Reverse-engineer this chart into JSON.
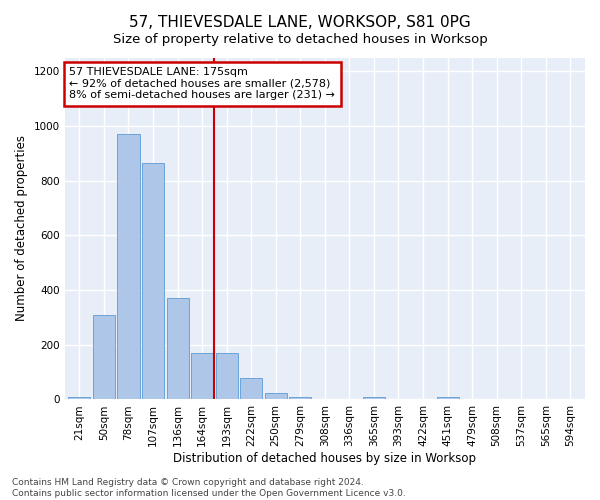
{
  "title": "57, THIEVESDALE LANE, WORKSOP, S81 0PG",
  "subtitle": "Size of property relative to detached houses in Worksop",
  "xlabel": "Distribution of detached houses by size in Worksop",
  "ylabel": "Number of detached properties",
  "bar_labels": [
    "21sqm",
    "50sqm",
    "78sqm",
    "107sqm",
    "136sqm",
    "164sqm",
    "193sqm",
    "222sqm",
    "250sqm",
    "279sqm",
    "308sqm",
    "336sqm",
    "365sqm",
    "393sqm",
    "422sqm",
    "451sqm",
    "479sqm",
    "508sqm",
    "537sqm",
    "565sqm",
    "594sqm"
  ],
  "bar_values": [
    10,
    310,
    970,
    865,
    370,
    170,
    170,
    80,
    25,
    10,
    0,
    0,
    10,
    0,
    0,
    10,
    0,
    0,
    0,
    0,
    0
  ],
  "bar_color": "#aec6e8",
  "bar_edge_color": "#5b9bd5",
  "reference_line_index": 6.0,
  "reference_line_color": "#cc0000",
  "annotation_line1": "57 THIEVESDALE LANE: 175sqm",
  "annotation_line2": "← 92% of detached houses are smaller (2,578)",
  "annotation_line3": "8% of semi-detached houses are larger (231) →",
  "annotation_box_color": "#cc0000",
  "ylim": [
    0,
    1250
  ],
  "yticks": [
    0,
    200,
    400,
    600,
    800,
    1000,
    1200
  ],
  "footer_line1": "Contains HM Land Registry data © Crown copyright and database right 2024.",
  "footer_line2": "Contains public sector information licensed under the Open Government Licence v3.0.",
  "background_color": "#e8eef8",
  "grid_color": "#ffffff",
  "title_fontsize": 11,
  "subtitle_fontsize": 9.5,
  "axis_label_fontsize": 8.5,
  "tick_fontsize": 7.5,
  "annotation_fontsize": 8,
  "footer_fontsize": 6.5
}
